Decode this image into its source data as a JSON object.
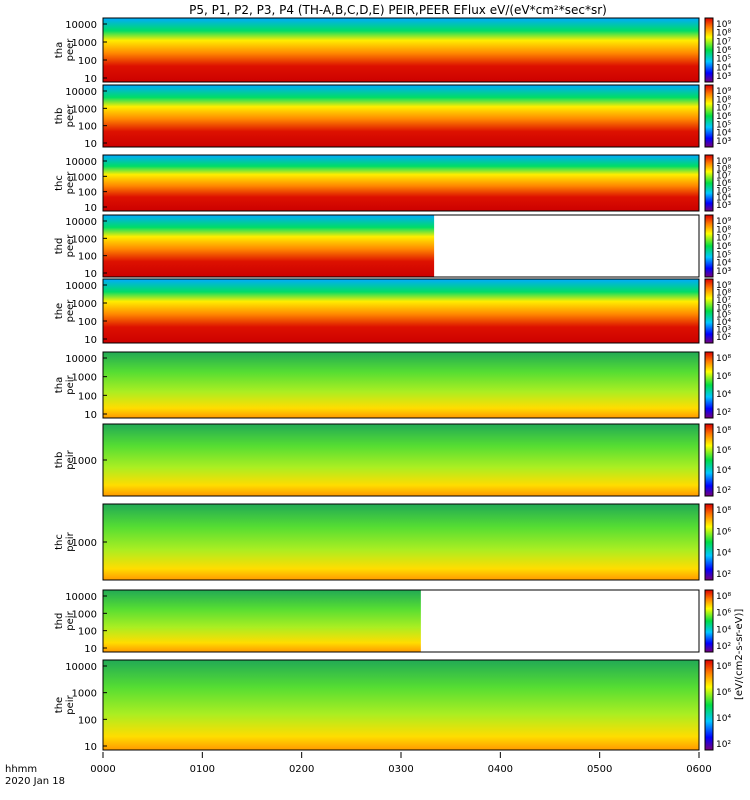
{
  "chart_data": {
    "type": "heatmap",
    "title": "P5, P1, P2, P3, P4 (TH-A,B,C,D,E) PEIR,PEER EFlux eV/(eV*cm²*sec*sr)",
    "x_tick_labels": [
      "0000",
      "0100",
      "0200",
      "0300",
      "0400",
      "0500",
      "0600"
    ],
    "x_range_minutes": [
      0,
      360
    ],
    "footer": {
      "left_label": "hhmm",
      "date": "2020 Jan 18"
    },
    "colorbar_unit_label": "[eV/(cm2-s-sr-eV)]",
    "colorscale": "rainbow (blue-cyan-green-yellow-red)",
    "panels": [
      {
        "probe": "tha",
        "product": "peer",
        "y_label": [
          "tha",
          "peer"
        ],
        "y_ticks": [
          "10000",
          "1000",
          "100",
          "10"
        ],
        "cbar_ticks": [
          "10⁹",
          "10⁸",
          "10⁷",
          "10⁶",
          "10⁵",
          "10⁴",
          "10³"
        ],
        "data_end_minutes": 360
      },
      {
        "probe": "thb",
        "product": "peer",
        "y_label": [
          "thb",
          "peer"
        ],
        "y_ticks": [
          "10000",
          "1000",
          "100",
          "10"
        ],
        "cbar_ticks": [
          "10⁹",
          "10⁸",
          "10⁷",
          "10⁶",
          "10⁵",
          "10⁴",
          "10³"
        ],
        "data_end_minutes": 360
      },
      {
        "probe": "thc",
        "product": "peer",
        "y_label": [
          "thc",
          "peer"
        ],
        "y_ticks": [
          "10000",
          "1000",
          "100",
          "10"
        ],
        "cbar_ticks": [
          "10⁹",
          "10⁸",
          "10⁷",
          "10⁶",
          "10⁵",
          "10⁴",
          "10³"
        ],
        "data_end_minutes": 360
      },
      {
        "probe": "thd",
        "product": "peer",
        "y_label": [
          "thd",
          "peer"
        ],
        "y_ticks": [
          "10000",
          "1000",
          "100",
          "10"
        ],
        "cbar_ticks": [
          "10⁹",
          "10⁸",
          "10⁷",
          "10⁶",
          "10⁵",
          "10⁴",
          "10³"
        ],
        "data_end_minutes": 200
      },
      {
        "probe": "the",
        "product": "peer",
        "y_label": [
          "the",
          "peer"
        ],
        "y_ticks": [
          "10000",
          "1000",
          "100",
          "10"
        ],
        "cbar_ticks": [
          "10⁹",
          "10⁸",
          "10⁷",
          "10⁶",
          "10⁵",
          "10⁴",
          "10³",
          "10²"
        ],
        "data_end_minutes": 360
      },
      {
        "probe": "tha",
        "product": "peir",
        "y_label": [
          "tha",
          "peir"
        ],
        "y_ticks": [
          "10000",
          "1000",
          "100",
          "10"
        ],
        "cbar_ticks": [
          "10⁸",
          "10⁶",
          "10⁴",
          "10²"
        ],
        "data_end_minutes": 360
      },
      {
        "probe": "thb",
        "product": "peir",
        "y_label": [
          "thb",
          "peir"
        ],
        "y_ticks": [
          "1000"
        ],
        "cbar_ticks": [
          "10⁸",
          "10⁶",
          "10⁴",
          "10²"
        ],
        "data_end_minutes": 360
      },
      {
        "probe": "thc",
        "product": "peir",
        "y_label": [
          "thc",
          "peir"
        ],
        "y_ticks": [
          "1000"
        ],
        "cbar_ticks": [
          "10⁸",
          "10⁶",
          "10⁴",
          "10²"
        ],
        "data_end_minutes": 360
      },
      {
        "probe": "thd",
        "product": "peir",
        "y_label": [
          "thd",
          "peir"
        ],
        "y_ticks": [
          "10000",
          "1000",
          "100",
          "10"
        ],
        "cbar_ticks": [
          "10⁸",
          "10⁶",
          "10⁴",
          "10²"
        ],
        "data_end_minutes": 192
      },
      {
        "probe": "the",
        "product": "peir",
        "y_label": [
          "the",
          "peir"
        ],
        "y_ticks": [
          "10000",
          "1000",
          "100",
          "10"
        ],
        "cbar_ticks": [
          "10⁸",
          "10⁶",
          "10⁴",
          "10²"
        ],
        "data_end_minutes": 360
      }
    ]
  }
}
